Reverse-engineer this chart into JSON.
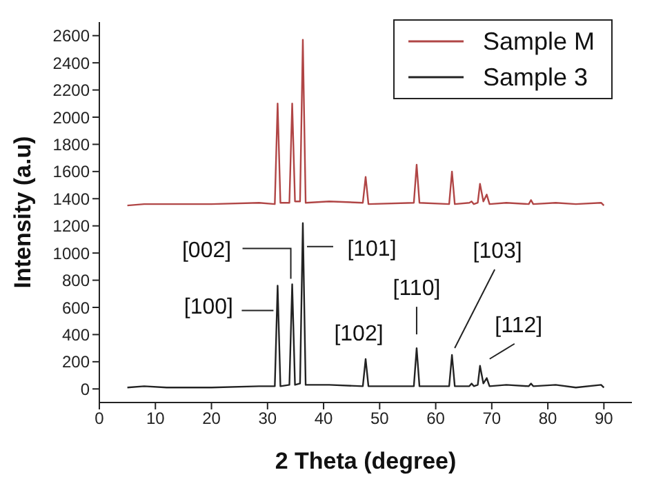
{
  "chart_data": {
    "type": "line",
    "xlabel": "2 Theta (degree)",
    "ylabel": "Intensity (a.u)",
    "xlim": [
      0,
      95
    ],
    "xticks": [
      0,
      10,
      20,
      30,
      40,
      50,
      60,
      70,
      80,
      90
    ],
    "ylim": [
      -100,
      2700
    ],
    "yticks": [
      0,
      200,
      400,
      600,
      800,
      1000,
      1200,
      1400,
      1600,
      1800,
      2000,
      2200,
      2400,
      2600
    ],
    "legend": "top right",
    "marker": "none",
    "line_style": "solid",
    "series": [
      {
        "name": "Sample M",
        "color": "#b04545",
        "x": [
          5,
          8,
          12,
          20,
          28.5,
          31.3,
          31.8,
          32.3,
          33.9,
          34.4,
          34.9,
          35.8,
          36.3,
          36.8,
          41,
          47,
          47.5,
          48,
          56.1,
          56.6,
          57.1,
          62.4,
          62.9,
          63.4,
          66,
          66.4,
          66.8,
          67.5,
          67.9,
          68.5,
          69.1,
          69.6,
          72.6,
          76.6,
          77,
          77.4,
          81.4,
          85,
          89.5,
          90
        ],
        "values": [
          1350,
          1360,
          1360,
          1360,
          1370,
          1360,
          2100,
          1370,
          1370,
          2100,
          1380,
          1380,
          2570,
          1370,
          1380,
          1370,
          1560,
          1360,
          1370,
          1650,
          1370,
          1360,
          1600,
          1360,
          1370,
          1380,
          1360,
          1370,
          1510,
          1380,
          1430,
          1360,
          1370,
          1360,
          1390,
          1360,
          1370,
          1360,
          1370,
          1350
        ]
      },
      {
        "name": "Sample 3",
        "color": "#222222",
        "x": [
          5,
          8,
          12,
          20,
          28.5,
          31.3,
          31.8,
          32.3,
          33.9,
          34.4,
          34.9,
          35.8,
          36.3,
          36.8,
          41,
          47,
          47.5,
          48,
          56.1,
          56.6,
          57.1,
          62.4,
          62.9,
          63.4,
          66,
          66.4,
          66.8,
          67.5,
          67.9,
          68.5,
          69.1,
          69.6,
          72.6,
          76.6,
          77,
          77.4,
          81.4,
          85,
          89.5,
          90
        ],
        "values": [
          10,
          20,
          10,
          10,
          20,
          20,
          760,
          20,
          30,
          770,
          30,
          40,
          1220,
          30,
          30,
          20,
          220,
          20,
          20,
          300,
          20,
          20,
          250,
          20,
          20,
          40,
          20,
          30,
          170,
          40,
          80,
          20,
          30,
          20,
          40,
          20,
          30,
          10,
          30,
          10
        ]
      }
    ],
    "annotations": [
      {
        "text": "[100]",
        "x": 31.8,
        "y": 760
      },
      {
        "text": "[002]",
        "x": 34.4,
        "y": 770
      },
      {
        "text": "[101]",
        "x": 36.3,
        "y": 1220
      },
      {
        "text": "[102]",
        "x": 47.5,
        "y": 220
      },
      {
        "text": "[110]",
        "x": 56.6,
        "y": 300
      },
      {
        "text": "[103]",
        "x": 62.9,
        "y": 250
      },
      {
        "text": "[112]",
        "x": 67.9,
        "y": 170
      }
    ]
  }
}
